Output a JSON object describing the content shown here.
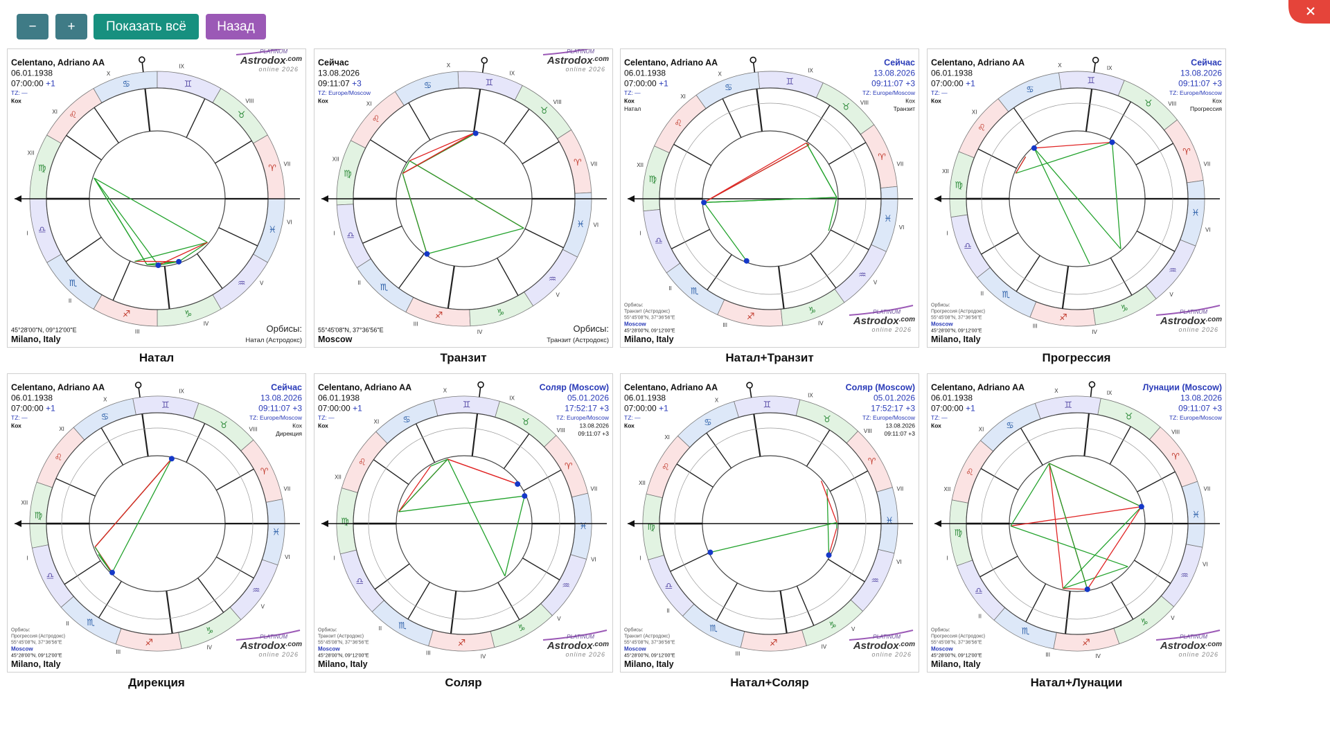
{
  "toolbar": {
    "buttons": [
      "−",
      "+",
      "Показать всё",
      "Назад"
    ]
  },
  "logo": {
    "tier": "PLATINUM",
    "brand": "Astrodox",
    "domain": ".com",
    "edition": "online 2026"
  },
  "zodiac_signs": [
    "♈",
    "♉",
    "♊",
    "♋",
    "♌",
    "♍",
    "♎",
    "♏",
    "♐",
    "♑",
    "♒",
    "♓"
  ],
  "house_numerals": [
    "I",
    "II",
    "III",
    "IV",
    "V",
    "VI",
    "VII",
    "VIII",
    "IX",
    "X",
    "XI",
    "XII"
  ],
  "charts": [
    {
      "caption": "Натал",
      "left": [
        "Celentano, Adriano AA",
        "06.01.1938",
        [
          "07:00:00",
          "+1"
        ],
        "TZ: —",
        "Кох"
      ],
      "bottom_left": [
        "45°28'00\"N, 09°12'00\"E",
        "Milano, Italy"
      ],
      "bottom_right": [
        "Орбисы:",
        "Натал (Астродокс)"
      ]
    },
    {
      "caption": "Транзит",
      "left": [
        "Сейчас",
        "13.08.2026",
        [
          "09:11:07",
          "+3"
        ],
        "TZ: Europe/Moscow",
        "Кох"
      ],
      "bottom_left": [
        "55°45'08\"N, 37°36'56\"E",
        "Moscow"
      ],
      "bottom_right": [
        "Орбисы:",
        "Транзит (Астродокс)"
      ]
    },
    {
      "caption": "Натал+Транзит",
      "left": [
        "Celentano, Adriano AA",
        "06.01.1938",
        [
          "07:00:00",
          "+1"
        ],
        "TZ: —",
        "Кох",
        "Натал"
      ],
      "right": [
        "Сейчас",
        "13.08.2026",
        [
          "09:11:07",
          "+3"
        ],
        "TZ: Europe/Moscow",
        "Кох",
        "Транзит"
      ],
      "bottom_left": [
        "Орбисы:",
        "Транзит (Астродокс)",
        "55°45'08\"N, 37°36'56\"E",
        "Moscow",
        "45°28'00\"N, 09°12'00\"E",
        "Milano, Italy"
      ]
    },
    {
      "caption": "Прогрессия",
      "left": [
        "Celentano, Adriano AA",
        "06.01.1938",
        [
          "07:00:00",
          "+1"
        ],
        "TZ: —",
        "Кох"
      ],
      "right": [
        "Сейчас",
        "13.08.2026",
        [
          "09:11:07",
          "+3"
        ],
        "TZ: Europe/Moscow",
        "Кох",
        "Прогрессия"
      ],
      "bottom_left": [
        "Орбисы:",
        "Прогрессия (Астродокс)",
        "55°45'08\"N, 37°36'56\"E",
        "Moscow",
        "45°28'00\"N, 09°12'00\"E",
        "Milano, Italy"
      ]
    },
    {
      "caption": "Дирекция",
      "left": [
        "Celentano, Adriano AA",
        "06.01.1938",
        [
          "07:00:00",
          "+1"
        ],
        "TZ: —",
        "Кох"
      ],
      "right": [
        "Сейчас",
        "13.08.2026",
        [
          "09:11:07",
          "+3"
        ],
        "TZ: Europe/Moscow",
        "Кох",
        "Дирекция"
      ],
      "bottom_left": [
        "Орбисы:",
        "Прогрессия (Астродокс)",
        "55°45'08\"N, 37°36'56\"E",
        "Moscow",
        "45°28'00\"N, 09°12'00\"E",
        "Milano, Italy"
      ]
    },
    {
      "caption": "Соляр",
      "left": [
        "Celentano, Adriano AA",
        "06.01.1938",
        [
          "07:00:00",
          "+1"
        ],
        "TZ: —",
        "Кох"
      ],
      "right": [
        "Соляр (Moscow)",
        "05.01.2026",
        [
          "17:52:17",
          "+3"
        ],
        "TZ: Europe/Moscow",
        "13.08.2026",
        "09:11:07 +3"
      ],
      "bottom_left": [
        "Орбисы:",
        "Транзит (Астродокс)",
        "55°45'08\"N, 37°36'56\"E",
        "Moscow",
        "45°28'00\"N, 09°12'00\"E",
        "Milano, Italy"
      ]
    },
    {
      "caption": "Натал+Соляр",
      "left": [
        "Celentano, Adriano AA",
        "06.01.1938",
        [
          "07:00:00",
          "+1"
        ],
        "TZ: —",
        "Кох"
      ],
      "right": [
        "Соляр (Moscow)",
        "05.01.2026",
        [
          "17:52:17",
          "+3"
        ],
        "TZ: Europe/Moscow",
        "13.08.2026",
        "09:11:07 +3"
      ],
      "bottom_left": [
        "Орбисы:",
        "Транзит (Астродокс)",
        "55°45'08\"N, 37°36'56\"E",
        "Moscow",
        "45°28'00\"N, 09°12'00\"E",
        "Milano, Italy"
      ]
    },
    {
      "caption": "Натал+Лунации",
      "left": [
        "Celentano, Adriano AA",
        "06.01.1938",
        [
          "07:00:00",
          "+1"
        ],
        "TZ: —",
        "Кох"
      ],
      "right": [
        "Лунации (Moscow)",
        "13.08.2026",
        [
          "09:11:07",
          "+3"
        ],
        "TZ: Europe/Moscow"
      ],
      "bottom_left": [
        "Орбисы:",
        "Прогрессия (Астродокс)",
        "55°45'08\"N, 37°36'56\"E",
        "Moscow",
        "45°28'00\"N, 09°12'00\"E",
        "Milano, Italy"
      ]
    }
  ]
}
